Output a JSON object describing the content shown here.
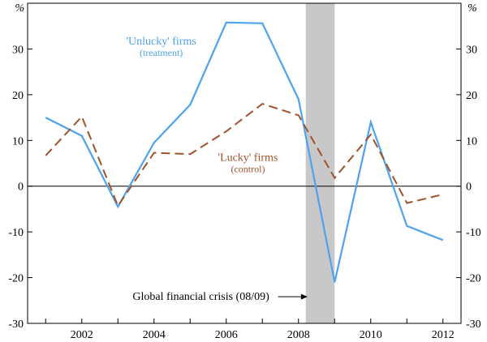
{
  "chart_data": {
    "type": "line",
    "title": "",
    "xlabel": "",
    "ylabel": "",
    "unit_left": "%",
    "unit_right": "%",
    "xlim": [
      2000.5,
      2012.5
    ],
    "ylim": [
      -30,
      40
    ],
    "x_ticks": [
      2002,
      2004,
      2006,
      2008,
      2010,
      2012
    ],
    "y_ticks": [
      -30,
      -20,
      -10,
      0,
      10,
      20,
      30
    ],
    "grid": false,
    "x": [
      2001,
      2002,
      2003,
      2004,
      2005,
      2006,
      2007,
      2008,
      2009,
      2010,
      2011,
      2012
    ],
    "series": [
      {
        "name": "'Unlucky' firms",
        "sub": "(treatment)",
        "style": "solid",
        "color": "#4da3ee",
        "values": [
          15,
          11,
          -4.5,
          9.5,
          17.8,
          35.8,
          35.6,
          19,
          -21,
          14,
          -8.7,
          -11.8
        ]
      },
      {
        "name": "'Lucky' firms",
        "sub": "(control)",
        "style": "dashed",
        "color": "#a0522d",
        "values": [
          6.7,
          15.2,
          -4.3,
          7.3,
          7,
          12,
          18,
          15.5,
          1.8,
          11.3,
          -3.7,
          -1.8
        ]
      }
    ],
    "shaded_region": {
      "from": 2008.2,
      "to": 2009.0,
      "color": "#c8c8c8",
      "label": "Global financial crisis (08/09)"
    },
    "annotations": [
      {
        "text": "'Unlucky' firms",
        "sub": "(treatment)",
        "x": 2004.2,
        "y": 31,
        "series": 0
      },
      {
        "text": "'Lucky' firms",
        "sub": "(control)",
        "x": 2006.6,
        "y": 5.5,
        "series": 1
      },
      {
        "text": "Global financial crisis (08/09)",
        "x": 2005.3,
        "y": -24,
        "arrow_to": 2008.25
      }
    ]
  }
}
